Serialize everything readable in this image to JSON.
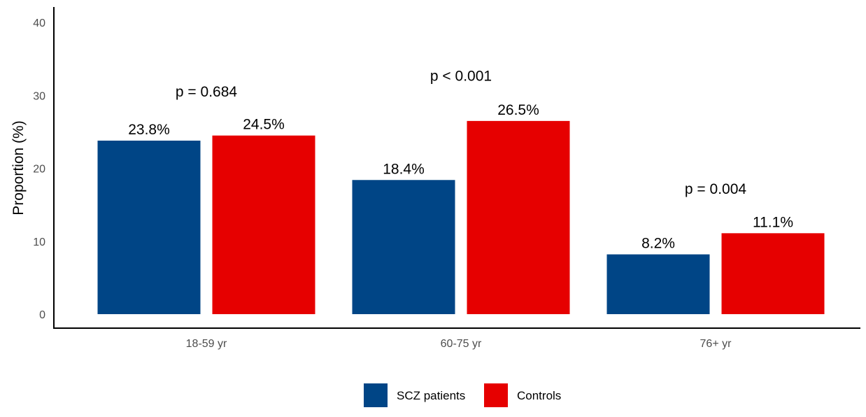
{
  "chart_data": {
    "type": "bar",
    "categories": [
      "18-59 yr",
      "60-75 yr",
      "76+ yr"
    ],
    "series": [
      {
        "name": "SCZ patients",
        "values": [
          23.8,
          18.4,
          8.2
        ],
        "labels": [
          "23.8%",
          "18.4%",
          "8.2%"
        ],
        "color": "#004586"
      },
      {
        "name": "Controls",
        "values": [
          24.5,
          26.5,
          11.1
        ],
        "labels": [
          "24.5%",
          "26.5%",
          "11.1%"
        ],
        "color": "#e60000"
      }
    ],
    "annotations": [
      {
        "category": "18-59 yr",
        "text": "p = 0.684",
        "y": 30.5
      },
      {
        "category": "60-75 yr",
        "text": "p < 0.001",
        "y": 32.7
      },
      {
        "category": "76+ yr",
        "text": "p = 0.004",
        "y": 17.2
      }
    ],
    "ylabel": "Proportion (%)",
    "xlabel": "",
    "ylim": [
      0,
      40
    ],
    "yticks": [
      0,
      10,
      20,
      30,
      40
    ],
    "legend_position": "bottom",
    "grid": false
  }
}
